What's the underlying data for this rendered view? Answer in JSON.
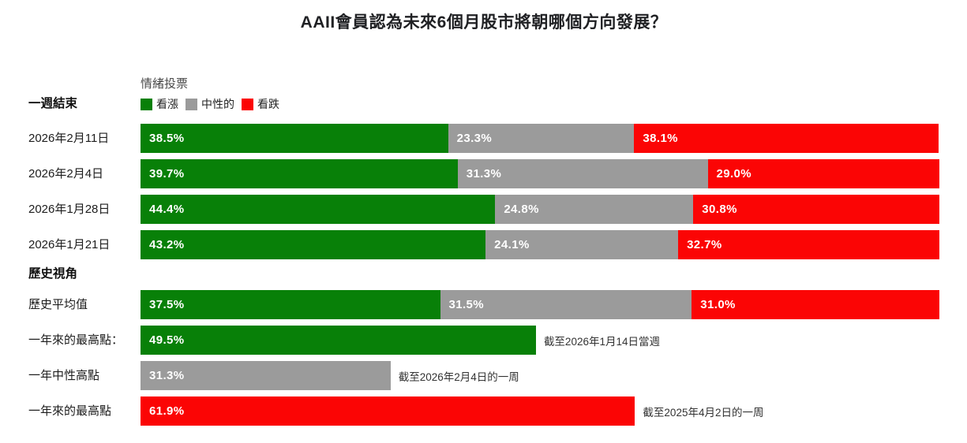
{
  "title": "AAII會員認為未來6個月股市將朝哪個方向發展？",
  "legend": {
    "title": "情緒投票",
    "items": [
      {
        "name": "bullish",
        "label": "看漲",
        "color": "#088008"
      },
      {
        "name": "neutral",
        "label": "中性的",
        "color": "#9b9b9b"
      },
      {
        "name": "bearish",
        "label": "看跌",
        "color": "#fb0505"
      }
    ]
  },
  "colors": {
    "bullish": "#088008",
    "neutral": "#9b9b9b",
    "bearish": "#fb0505",
    "background": "#ffffff",
    "text": "#202124"
  },
  "chart_data": {
    "type": "bar",
    "orientation": "horizontal-stacked",
    "value_unit": "%",
    "xlim": [
      0,
      100
    ],
    "series_names": [
      "看漲",
      "中性的",
      "看跌"
    ],
    "colors": {
      "bullish": "#088008",
      "neutral": "#9b9b9b",
      "bearish": "#fb0505"
    },
    "groups": [
      {
        "section": "一週結束",
        "rows": [
          {
            "label": "2026年2月11日",
            "segments": [
              {
                "series": "bullish",
                "value": 38.5
              },
              {
                "series": "neutral",
                "value": 23.3
              },
              {
                "series": "bearish",
                "value": 38.1
              }
            ]
          },
          {
            "label": "2026年2月4日",
            "segments": [
              {
                "series": "bullish",
                "value": 39.7
              },
              {
                "series": "neutral",
                "value": 31.3
              },
              {
                "series": "bearish",
                "value": 29.0
              }
            ]
          },
          {
            "label": "2026年1月28日",
            "segments": [
              {
                "series": "bullish",
                "value": 44.4
              },
              {
                "series": "neutral",
                "value": 24.8
              },
              {
                "series": "bearish",
                "value": 30.8
              }
            ]
          },
          {
            "label": "2026年1月21日",
            "segments": [
              {
                "series": "bullish",
                "value": 43.2
              },
              {
                "series": "neutral",
                "value": 24.1
              },
              {
                "series": "bearish",
                "value": 32.7
              }
            ]
          }
        ]
      },
      {
        "section": "歷史視角",
        "rows": [
          {
            "label": "歷史平均值",
            "segments": [
              {
                "series": "bullish",
                "value": 37.5
              },
              {
                "series": "neutral",
                "value": 31.5
              },
              {
                "series": "bearish",
                "value": 31.0
              }
            ]
          },
          {
            "label": "一年來的最高點：",
            "segments": [
              {
                "series": "bullish",
                "value": 49.5
              }
            ],
            "annotation": "截至2026年1月14日當週"
          },
          {
            "label": "一年中性高點",
            "segments": [
              {
                "series": "neutral",
                "value": 31.3
              }
            ],
            "annotation": "截至2026年2月4日的一周"
          },
          {
            "label": "一年來的最高點",
            "segments": [
              {
                "series": "bearish",
                "value": 61.9
              }
            ],
            "annotation": "截至2025年4月2日的一周"
          }
        ]
      }
    ]
  }
}
